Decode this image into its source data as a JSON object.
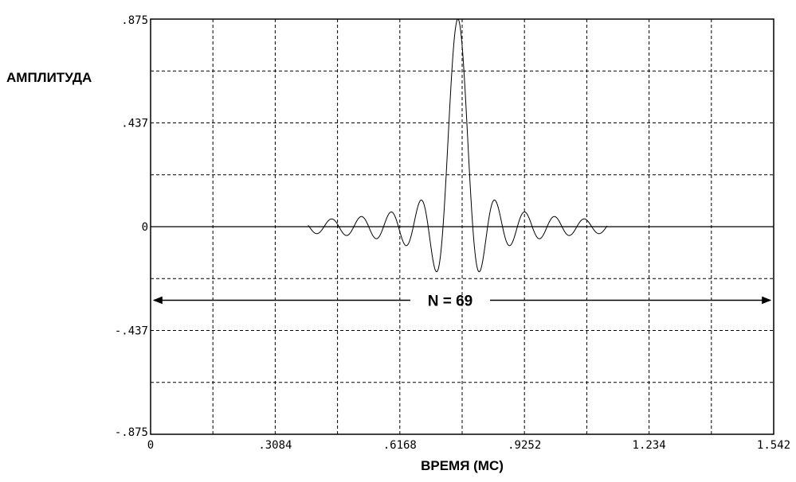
{
  "chart_data": {
    "type": "line",
    "xlabel": "ВРЕМЯ (МС)",
    "ylabel": "АМПЛИТУДА",
    "xlim": [
      0,
      1.542
    ],
    "ylim": [
      -0.875,
      0.875
    ],
    "x_ticks": [
      {
        "value": 0,
        "label": "0"
      },
      {
        "value": 0.3084,
        "label": ".3084"
      },
      {
        "value": 0.6168,
        "label": ".6168"
      },
      {
        "value": 0.9252,
        "label": ".9252"
      },
      {
        "value": 1.2336,
        "label": "1.234"
      },
      {
        "value": 1.542,
        "label": "1.542"
      }
    ],
    "y_ticks": [
      {
        "value": 0.875,
        "label": ".875"
      },
      {
        "value": 0.4375,
        "label": ".437"
      },
      {
        "value": 0,
        "label": "0"
      },
      {
        "value": -0.4375,
        "label": "-.437"
      },
      {
        "value": -0.875,
        "label": "-.875"
      }
    ],
    "grid": true,
    "grid_style": "dashed",
    "x_grid_step": 0.1542,
    "y_grid_step": 0.21875,
    "series": [
      {
        "waveform": "sinc",
        "peak_time": 0.7605,
        "peak_amplitude": 0.875,
        "zero_crossing_spacing": 0.0368,
        "support": [
          0.39,
          1.13
        ],
        "color": "#000000"
      }
    ],
    "annotations": [
      {
        "text": "N = 69",
        "type": "double-arrow",
        "x_from": 0,
        "x_to": 1.542,
        "y": -0.31
      }
    ]
  }
}
